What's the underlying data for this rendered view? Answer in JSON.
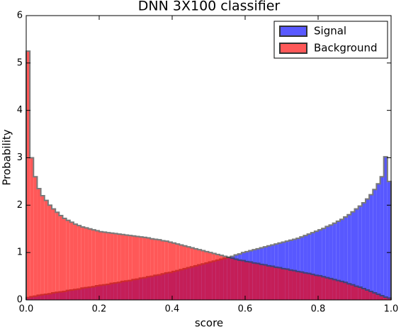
{
  "chart_data": {
    "type": "histogram",
    "title": "DNN 3X100 classifier",
    "xlabel": "score",
    "ylabel": "Probability",
    "bins": [
      0,
      0.01,
      0.02,
      0.03,
      0.04,
      0.05,
      0.06,
      0.07,
      0.08,
      0.09,
      0.1,
      0.11,
      0.12,
      0.13,
      0.14,
      0.15,
      0.16,
      0.17,
      0.18,
      0.19,
      0.2,
      0.21,
      0.22,
      0.23,
      0.24,
      0.25,
      0.26,
      0.27,
      0.28,
      0.29,
      0.3,
      0.31,
      0.32,
      0.33,
      0.34,
      0.35,
      0.36,
      0.37,
      0.38,
      0.39,
      0.4,
      0.41,
      0.42,
      0.43,
      0.44,
      0.45,
      0.46,
      0.47,
      0.48,
      0.49,
      0.5,
      0.51,
      0.52,
      0.53,
      0.54,
      0.55,
      0.56,
      0.57,
      0.58,
      0.59,
      0.6,
      0.61,
      0.62,
      0.63,
      0.64,
      0.65,
      0.66,
      0.67,
      0.68,
      0.69,
      0.7,
      0.71,
      0.72,
      0.73,
      0.74,
      0.75,
      0.76,
      0.77,
      0.78,
      0.79,
      0.8,
      0.81,
      0.82,
      0.83,
      0.84,
      0.85,
      0.86,
      0.87,
      0.88,
      0.89,
      0.9,
      0.91,
      0.92,
      0.93,
      0.94,
      0.95,
      0.96,
      0.97,
      0.98,
      0.99,
      1
    ],
    "series": [
      {
        "name": "Signal",
        "color": "#0000ff",
        "values": [
          0.05,
          0.07,
          0.08,
          0.1,
          0.11,
          0.12,
          0.13,
          0.15,
          0.16,
          0.17,
          0.18,
          0.2,
          0.21,
          0.22,
          0.23,
          0.25,
          0.26,
          0.27,
          0.28,
          0.3,
          0.31,
          0.32,
          0.33,
          0.35,
          0.36,
          0.37,
          0.39,
          0.4,
          0.41,
          0.43,
          0.44,
          0.46,
          0.47,
          0.49,
          0.5,
          0.52,
          0.53,
          0.55,
          0.57,
          0.58,
          0.6,
          0.62,
          0.64,
          0.66,
          0.68,
          0.7,
          0.72,
          0.74,
          0.76,
          0.78,
          0.8,
          0.82,
          0.84,
          0.86,
          0.88,
          0.9,
          0.92,
          0.95,
          0.97,
          1.0,
          1.02,
          1.04,
          1.06,
          1.08,
          1.1,
          1.12,
          1.14,
          1.16,
          1.18,
          1.2,
          1.22,
          1.24,
          1.26,
          1.28,
          1.3,
          1.33,
          1.36,
          1.39,
          1.42,
          1.45,
          1.48,
          1.51,
          1.55,
          1.58,
          1.62,
          1.66,
          1.7,
          1.75,
          1.8,
          1.86,
          1.92,
          1.98,
          2.05,
          2.13,
          2.22,
          2.33,
          2.45,
          2.6,
          3.02,
          2.5
        ]
      },
      {
        "name": "Background",
        "color": "#ff0000",
        "values": [
          5.25,
          3.0,
          2.6,
          2.35,
          2.2,
          2.1,
          2.0,
          1.92,
          1.85,
          1.78,
          1.72,
          1.68,
          1.64,
          1.6,
          1.57,
          1.54,
          1.52,
          1.5,
          1.48,
          1.46,
          1.44,
          1.43,
          1.42,
          1.41,
          1.4,
          1.39,
          1.38,
          1.37,
          1.36,
          1.35,
          1.34,
          1.33,
          1.32,
          1.31,
          1.29,
          1.28,
          1.27,
          1.25,
          1.24,
          1.22,
          1.2,
          1.18,
          1.16,
          1.14,
          1.12,
          1.1,
          1.08,
          1.06,
          1.04,
          1.02,
          1.0,
          0.98,
          0.96,
          0.94,
          0.92,
          0.9,
          0.88,
          0.86,
          0.84,
          0.83,
          0.81,
          0.8,
          0.78,
          0.77,
          0.75,
          0.74,
          0.72,
          0.71,
          0.69,
          0.68,
          0.66,
          0.65,
          0.63,
          0.62,
          0.6,
          0.59,
          0.57,
          0.56,
          0.54,
          0.52,
          0.51,
          0.49,
          0.47,
          0.45,
          0.43,
          0.41,
          0.39,
          0.37,
          0.34,
          0.32,
          0.29,
          0.27,
          0.24,
          0.21,
          0.18,
          0.15,
          0.12,
          0.09,
          0.06,
          0.04
        ]
      }
    ],
    "xlim": [
      0,
      1
    ],
    "ylim": [
      0,
      6
    ],
    "xticks": [
      {
        "value": 0,
        "label": "0.0"
      },
      {
        "value": 0.2,
        "label": "0.2"
      },
      {
        "value": 0.4,
        "label": "0.4"
      },
      {
        "value": 0.6,
        "label": "0.6"
      },
      {
        "value": 0.8,
        "label": "0.8"
      },
      {
        "value": 1,
        "label": "1.0"
      }
    ],
    "yticks": [
      0,
      1,
      2,
      3,
      4,
      5,
      6
    ],
    "legend": "upper right",
    "alpha": 0.65,
    "edgecolor": "#333333"
  }
}
